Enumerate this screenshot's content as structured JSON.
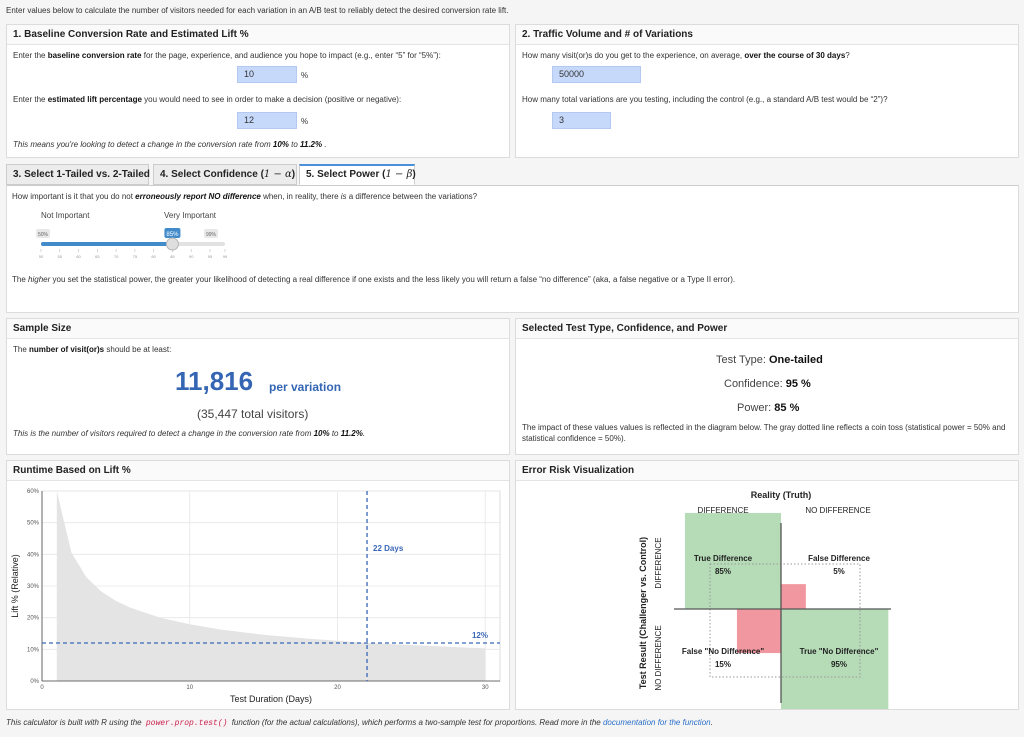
{
  "intro": "Enter values below to calculate the number of visitors needed for each variation in an A/B test to reliably detect the desired conversion rate lift.",
  "panel1": {
    "title": "1. Baseline Conversion Rate and Estimated Lift %",
    "q1_pre": "Enter the ",
    "q1_bold": "baseline conversion rate",
    "q1_post": " for the page, experience, and audience you hope to impact (e.g., enter “5” for “5%”):",
    "baseline_value": "10",
    "pct": "%",
    "q2_pre": "Enter the ",
    "q2_bold": "estimated lift percentage",
    "q2_post": " you would need to see in order to make a decision (positive or negative):",
    "lift_value": "12",
    "note_pre": "This means you're looking to detect a change in the conversion rate from ",
    "note_from": "10%",
    "note_mid": " to ",
    "note_to": "11.2%",
    "note_end": " ."
  },
  "panel2": {
    "title": "2. Traffic Volume and # of Variations",
    "q1_pre": "How many visit(or)s do you get to the experience, on average, ",
    "q1_bold": "over the course of 30 days",
    "q1_post": "?",
    "visitors_value": "50000",
    "q2": "How many total variations are you testing, including the control (e.g., a standard A/B test would be “2”)?",
    "variations_value": "3"
  },
  "tabs": {
    "tab3": "3. Select 1-Tailed vs. 2-Tailed",
    "tab4_pre": "4. Select Confidence (",
    "tab4_math": "1 − α",
    "tab4_post": ")",
    "tab5_pre": "5. Select Power (",
    "tab5_math": "1 − β",
    "tab5_post": ")"
  },
  "power": {
    "question_pre": "How important is it that you do not ",
    "question_bold": "erroneously report NO difference",
    "question_mid": " when, in reality, there ",
    "question_is": "is",
    "question_post": " a difference between the variations?",
    "label_low": "Not Important",
    "label_high": "Very Important",
    "min_badge": "50%",
    "value_badge": "85%",
    "max_badge": "99%",
    "value": 85,
    "min": 50,
    "max": 99,
    "ticks": [
      "50",
      "55",
      "60",
      "65",
      "70",
      "75",
      "80",
      "85",
      "90",
      "95",
      "99"
    ],
    "explain_pre": "The ",
    "explain_it": "higher",
    "explain_post": " you set the statistical power, the greater your likelihood of detecting a real difference if one exists and the less likely you will return a false “no difference” (aka, a false negative or a Type II error)."
  },
  "sample": {
    "title": "Sample Size",
    "lead_pre": "The ",
    "lead_bold": "number of visit(or)s",
    "lead_post": " should be at least:",
    "per_variation": "11,816",
    "per_label": "per variation",
    "total": "(35,447 total visitors)",
    "note_pre": "This is the number of visitors required to detect a change in the conversion rate from ",
    "note_from": "10%",
    "note_mid": " to ",
    "note_to": "11.2%",
    "note_end": "."
  },
  "selected": {
    "title": "Selected Test Type, Confidence, and Power",
    "type_label": "Test Type: ",
    "type_value": "One-tailed",
    "conf_label": "Confidence: ",
    "conf_value": "95 %",
    "power_label": "Power: ",
    "power_value": "85 %",
    "note": "The impact of these values values is reflected in the diagram below. The gray dotted line reflects a coin toss (statistical power = 50% and statistical confidence = 50%)."
  },
  "runtime": {
    "title": "Runtime Based on Lift %",
    "vline_label": "22 Days",
    "hline_label": "12%"
  },
  "chart_data": {
    "type": "area",
    "xlabel": "Test Duration (Days)",
    "ylabel": "Lift % (Relative)",
    "xlim": [
      0,
      31
    ],
    "ylim": [
      0,
      60
    ],
    "xticks": [
      "0",
      "10",
      "20",
      "30"
    ],
    "yticks": [
      "0%",
      "10%",
      "20%",
      "30%",
      "40%",
      "50%",
      "60%"
    ],
    "x": [
      1,
      2,
      3,
      4,
      5,
      6,
      8,
      10,
      12,
      15,
      18,
      22,
      26,
      30
    ],
    "values": [
      60,
      40.5,
      32.8,
      28.3,
      25.3,
      23.1,
      20,
      17.9,
      16.3,
      14.6,
      13.4,
      12.0,
      11.1,
      10.3
    ],
    "reference": {
      "day": 22,
      "lift": 12
    },
    "grid": true
  },
  "risk": {
    "title": "Error Risk Visualization",
    "reality": "Reality (Truth)",
    "col1": "DIFFERENCE",
    "col2": "NO DIFFERENCE",
    "row_axis": "Test Result (Challenger vs. Control)",
    "row1": "DIFFERENCE",
    "row2": "NO DIFFERENCE",
    "tl_label": "True Difference",
    "tl_value": "85%",
    "tr_label": "False Difference",
    "tr_value": "5%",
    "bl_label": "False \"No Difference\"",
    "bl_value": "15%",
    "br_label": "True \"No Difference\"",
    "br_value": "95%",
    "power": 85,
    "confidence": 95,
    "colors": {
      "correct": "#b5dcb7",
      "error": "#f0979f"
    }
  },
  "footer": {
    "pre": "This calculator is built with R using the ",
    "code": "power.prop.test()",
    "mid": " function (for the actual calculations), which performs a two-sample test for proportions. Read more in the ",
    "link": "documentation for the function",
    "end": "."
  }
}
